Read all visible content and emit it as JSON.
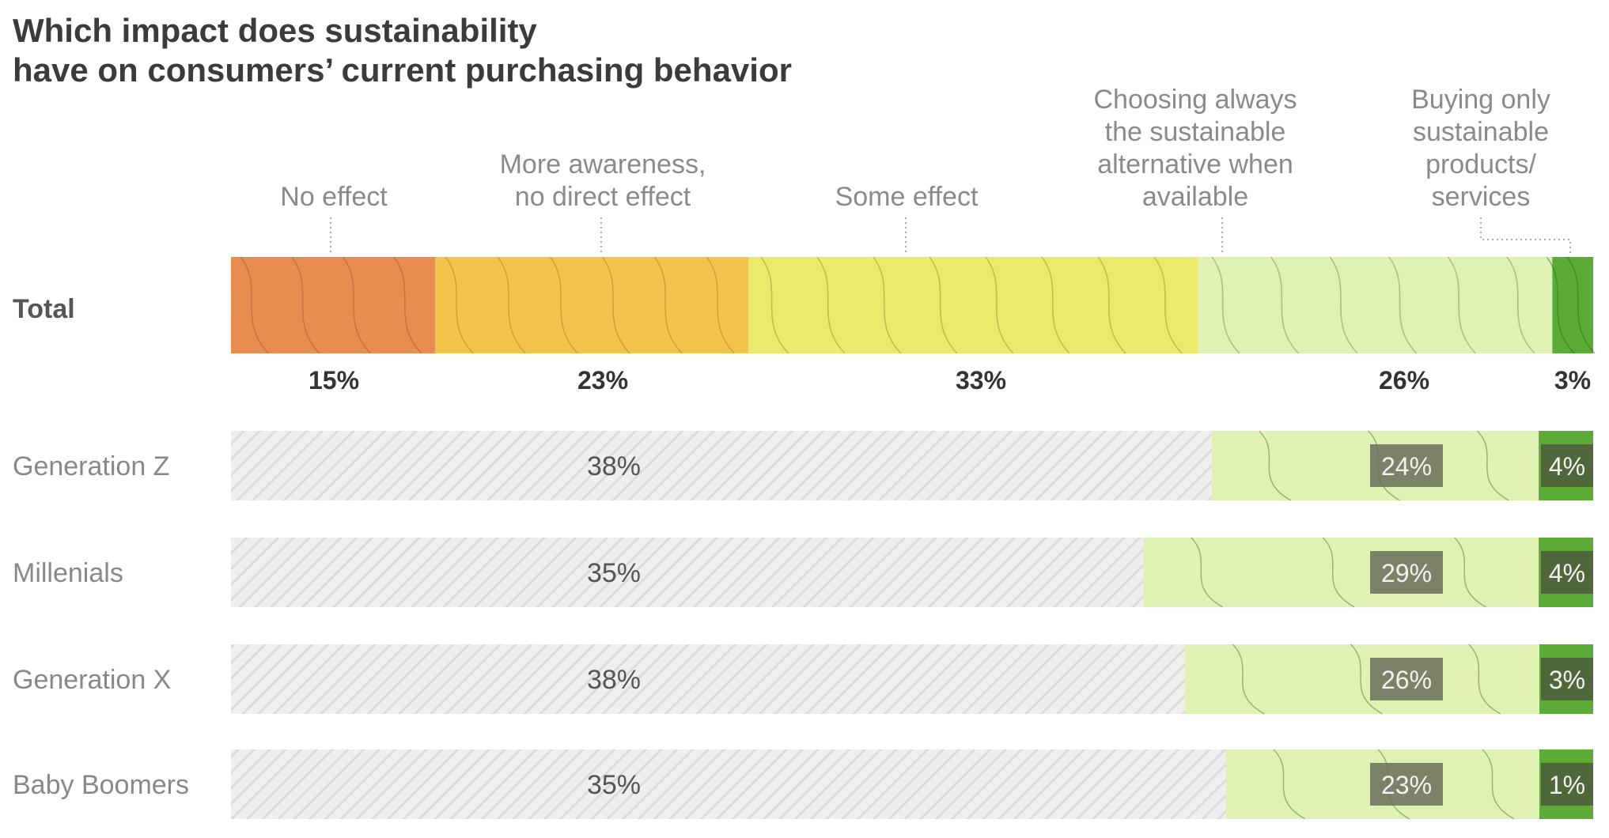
{
  "chart_data": {
    "type": "bar",
    "orientation": "horizontal",
    "stacked": true,
    "title_lines": [
      "Which impact does sustainability",
      "have on consumers’ current purchasing behavior"
    ],
    "segments": [
      {
        "name": "No effect",
        "label_lines": [
          "No effect"
        ],
        "color": "#e88d4f"
      },
      {
        "name": "More awareness, no direct effect",
        "label_lines": [
          "More awareness,",
          "no direct effect"
        ],
        "color": "#f3c44c"
      },
      {
        "name": "Some effect",
        "label_lines": [
          "Some effect"
        ],
        "color": "#ecea6a"
      },
      {
        "name": "Choosing always the sustainable alternative when available",
        "label_lines": [
          "Choosing always",
          "the sustainable",
          "alternative when",
          "available"
        ],
        "color": "#dff2b4"
      },
      {
        "name": "Buying only sustainable products/services",
        "label_lines": [
          "Buying only",
          "sustainable",
          "products/",
          "services"
        ],
        "color": "#5cab36"
      }
    ],
    "total": {
      "label": "Total",
      "values": [
        15,
        23,
        33,
        26,
        3
      ],
      "value_labels": [
        "15%",
        "23%",
        "33%",
        "26%",
        "3%"
      ]
    },
    "groups": [
      {
        "label": "Generation Z",
        "combined_value": 38,
        "combined_label": "38%",
        "choosing": 24,
        "choosing_label": "24%",
        "buying": 4,
        "buying_label": "4%"
      },
      {
        "label": "Millenials",
        "combined_value": 35,
        "combined_label": "35%",
        "choosing": 29,
        "choosing_label": "29%",
        "buying": 4,
        "buying_label": "4%"
      },
      {
        "label": "Generation X",
        "combined_value": 38,
        "combined_label": "38%",
        "choosing": 26,
        "choosing_label": "26%",
        "buying": 3,
        "buying_label": "3%"
      },
      {
        "label": "Baby Boomers",
        "combined_value": 35,
        "combined_label": "35%",
        "choosing": 23,
        "choosing_label": "23%",
        "buying": 1,
        "buying_label": "1%"
      }
    ],
    "unit": "%",
    "xlim": [
      0,
      100
    ],
    "legend": "none",
    "grid": false
  }
}
